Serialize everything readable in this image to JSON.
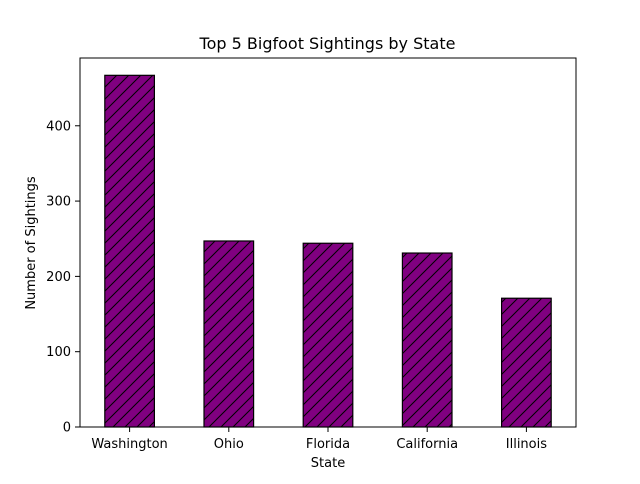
{
  "chart_data": {
    "type": "bar",
    "title": "Top 5 Bigfoot Sightings by State",
    "xlabel": "State",
    "ylabel": "Number of Sightings",
    "categories": [
      "Washington",
      "Ohio",
      "Florida",
      "California",
      "Illinois"
    ],
    "values": [
      467,
      247,
      244,
      231,
      171
    ],
    "ylim": [
      0,
      490
    ],
    "yticks": [
      0,
      100,
      200,
      300,
      400
    ],
    "grid": false,
    "legend": "none",
    "bar_style": {
      "fill": "#800080",
      "edge": "#000000",
      "hatch": "diagonal"
    }
  }
}
